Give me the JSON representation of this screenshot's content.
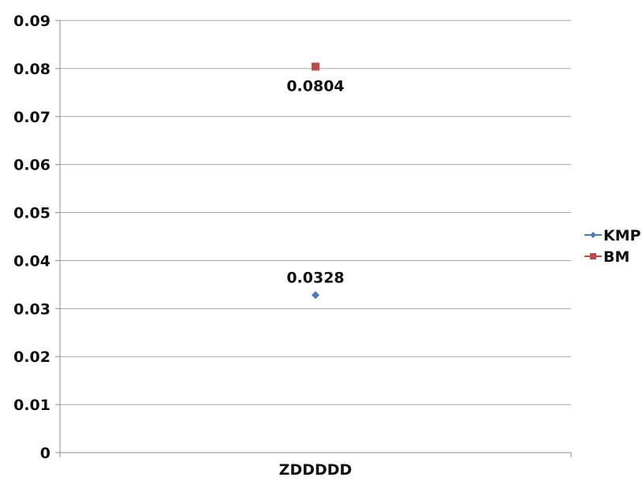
{
  "chart_data": {
    "type": "line",
    "categories": [
      "ZDDDDD"
    ],
    "ylim": [
      0,
      0.09
    ],
    "yticks": [
      "0",
      "0.01",
      "0.02",
      "0.03",
      "0.04",
      "0.05",
      "0.06",
      "0.07",
      "0.08",
      "0.09"
    ],
    "grid": true,
    "legend_position": "right",
    "series": [
      {
        "name": "KMP",
        "values": [
          0.0328
        ],
        "value_labels": [
          "0.0328"
        ],
        "color": "#4a7ebb",
        "marker": "diamond",
        "label_position": "above"
      },
      {
        "name": "BM",
        "values": [
          0.0804
        ],
        "value_labels": [
          "0.0804"
        ],
        "color": "#be4b48",
        "marker": "square",
        "label_position": "below"
      }
    ],
    "title": "",
    "xlabel": "",
    "ylabel": ""
  }
}
